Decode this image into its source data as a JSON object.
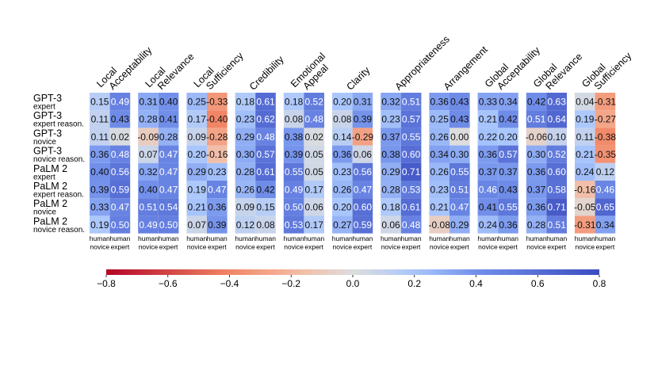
{
  "chart_data": {
    "type": "heatmap",
    "columns": [
      {
        "line1": "Local",
        "line2": "Acceptability"
      },
      {
        "line1": "Local",
        "line2": "Relevance"
      },
      {
        "line1": "Local",
        "line2": "Sufficiency"
      },
      {
        "line1": "",
        "line2": "Credibility"
      },
      {
        "line1": "Emotional",
        "line2": "Appeal"
      },
      {
        "line1": "",
        "line2": "Clarity"
      },
      {
        "line1": "",
        "line2": "Appropriateness"
      },
      {
        "line1": "",
        "line2": "Arrangement"
      },
      {
        "line1": "Global",
        "line2": "Acceptability"
      },
      {
        "line1": "Global",
        "line2": "Relevance"
      },
      {
        "line1": "Global",
        "line2": "Sufficiency"
      }
    ],
    "subcolumns": [
      {
        "line1": "human",
        "line2": "novice"
      },
      {
        "line1": "human",
        "line2": "expert"
      }
    ],
    "rows": [
      {
        "model": "GPT-3",
        "setting": "expert"
      },
      {
        "model": "GPT-3",
        "setting": "expert reason."
      },
      {
        "model": "GPT-3",
        "setting": "novice"
      },
      {
        "model": "GPT-3",
        "setting": "novice reason."
      },
      {
        "model": "PaLM 2",
        "setting": "expert"
      },
      {
        "model": "PaLM 2",
        "setting": "expert reason."
      },
      {
        "model": "PaLM 2",
        "setting": "novice"
      },
      {
        "model": "PaLM 2",
        "setting": "novice reason."
      }
    ],
    "values": [
      [
        0.15,
        0.49,
        0.31,
        0.4,
        0.25,
        -0.33,
        0.18,
        0.61,
        0.18,
        0.52,
        0.2,
        0.31,
        0.32,
        0.51,
        0.36,
        0.43,
        0.33,
        0.34,
        0.42,
        0.63,
        0.04,
        -0.31
      ],
      [
        0.11,
        0.43,
        0.28,
        0.41,
        0.17,
        -0.4,
        0.23,
        0.62,
        0.08,
        0.48,
        0.08,
        0.39,
        0.23,
        0.57,
        0.25,
        0.43,
        0.21,
        0.42,
        0.51,
        0.64,
        0.19,
        -0.27
      ],
      [
        0.11,
        0.02,
        -0.09,
        0.28,
        0.09,
        -0.28,
        0.29,
        0.48,
        0.38,
        0.02,
        0.14,
        -0.29,
        0.37,
        0.55,
        0.26,
        0.0,
        0.22,
        0.2,
        -0.06,
        0.1,
        0.11,
        -0.38
      ],
      [
        0.36,
        0.48,
        0.07,
        0.47,
        0.2,
        -0.16,
        0.3,
        0.57,
        0.39,
        0.05,
        0.36,
        0.06,
        0.38,
        0.6,
        0.34,
        0.3,
        0.36,
        0.57,
        0.3,
        0.52,
        0.21,
        -0.35
      ],
      [
        0.4,
        0.56,
        0.32,
        0.47,
        0.29,
        0.23,
        0.28,
        0.61,
        0.55,
        0.05,
        0.23,
        0.56,
        0.29,
        0.71,
        0.26,
        0.55,
        0.37,
        0.37,
        0.36,
        0.6,
        0.24,
        0.12
      ],
      [
        0.39,
        0.59,
        0.4,
        0.47,
        0.19,
        0.47,
        0.26,
        0.42,
        0.49,
        0.17,
        0.26,
        0.47,
        0.28,
        0.53,
        0.23,
        0.51,
        0.46,
        0.43,
        0.37,
        0.58,
        -0.16,
        0.46
      ],
      [
        0.33,
        0.47,
        0.51,
        0.54,
        0.21,
        0.36,
        0.09,
        0.15,
        0.5,
        0.06,
        0.2,
        0.6,
        0.18,
        0.61,
        0.21,
        0.47,
        0.41,
        0.55,
        0.36,
        0.71,
        -0.05,
        0.65
      ],
      [
        0.19,
        0.5,
        0.49,
        0.5,
        0.07,
        0.39,
        0.12,
        0.08,
        0.53,
        0.17,
        0.27,
        0.59,
        0.06,
        0.48,
        -0.08,
        0.29,
        0.24,
        0.36,
        0.28,
        0.51,
        -0.31,
        0.34
      ]
    ],
    "colorbar": {
      "min": -0.8,
      "max": 0.8,
      "ticks": [
        -0.8,
        -0.6,
        -0.4,
        -0.2,
        0.0,
        0.2,
        0.4,
        0.6,
        0.8
      ],
      "tick_labels": [
        "−0.8",
        "−0.6",
        "−0.4",
        "−0.2",
        "0.0",
        "0.2",
        "0.4",
        "0.6",
        "0.8"
      ]
    },
    "colormap": "coolwarm_r",
    "colors": {
      "negative": "#b40426",
      "neutral": "#dddddd",
      "positive": "#3b4cc0"
    }
  }
}
